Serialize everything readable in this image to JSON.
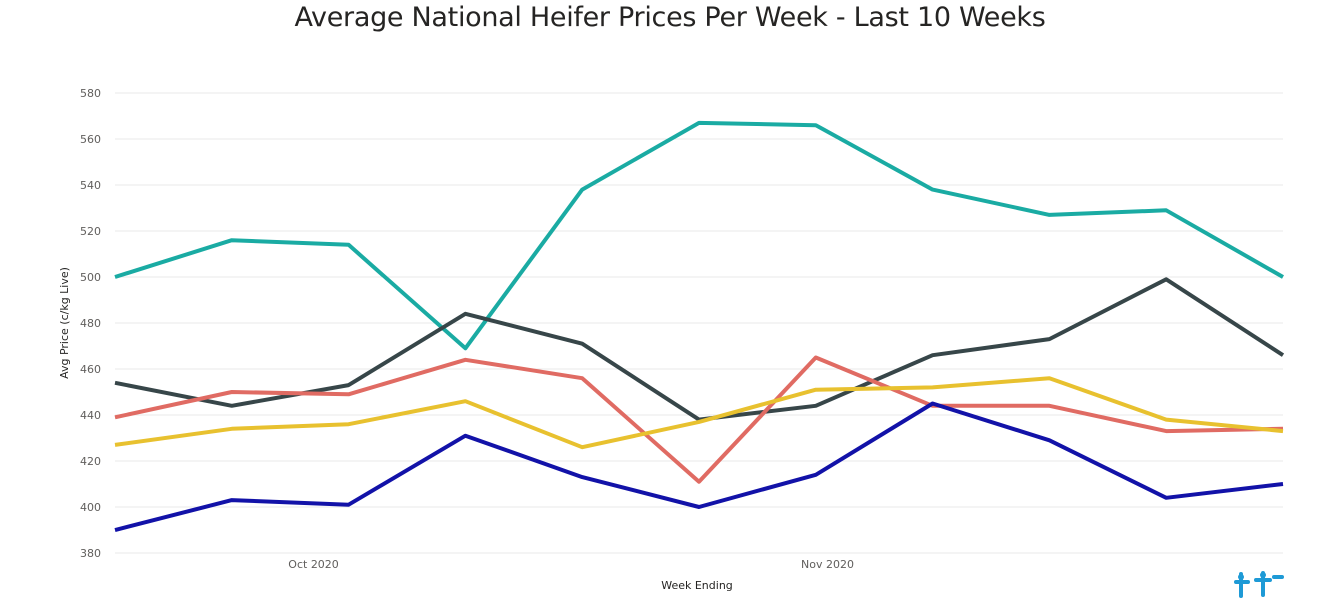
{
  "chart_data": {
    "type": "line",
    "title": "Average National Heifer Prices Per Week - Last 10 Weeks",
    "xlabel": "Week Ending",
    "ylabel": "Avg Price (c/kg Live)",
    "ylim": [
      380,
      580
    ],
    "yticks": [
      380,
      400,
      420,
      440,
      460,
      480,
      500,
      520,
      540,
      560,
      580
    ],
    "x_tick_labels": [
      {
        "label": "Oct 2020",
        "week_index": 1.7
      },
      {
        "label": "Nov 2020",
        "week_index": 6.1
      }
    ],
    "grid": true,
    "legend": "none",
    "x": [
      0,
      1,
      2,
      3,
      4,
      5,
      6,
      7,
      8,
      9,
      10
    ],
    "series": [
      {
        "color": "#1aaba3",
        "values": [
          500,
          516,
          514,
          469,
          538,
          567,
          566,
          538,
          527,
          529,
          500
        ]
      },
      {
        "color": "#374649",
        "values": [
          454,
          444,
          453,
          484,
          471,
          438,
          444,
          466,
          473,
          499,
          466
        ]
      },
      {
        "color": "#e06b63",
        "values": [
          439,
          450,
          449,
          464,
          456,
          411,
          465,
          444,
          444,
          433,
          434
        ]
      },
      {
        "color": "#e8c12f",
        "values": [
          427,
          434,
          436,
          446,
          426,
          437,
          451,
          452,
          456,
          438,
          433
        ]
      },
      {
        "color": "#1212a8",
        "values": [
          390,
          403,
          401,
          431,
          413,
          400,
          414,
          445,
          429,
          404,
          410
        ]
      }
    ]
  },
  "logo": {
    "name": "brand-logo-icon",
    "color": "#1e9ad6"
  }
}
